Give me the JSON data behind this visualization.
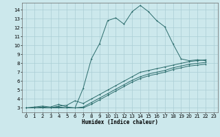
{
  "xlabel": "Humidex (Indice chaleur)",
  "xlim": [
    -0.5,
    23.5
  ],
  "ylim": [
    2.5,
    14.8
  ],
  "xticks": [
    0,
    1,
    2,
    3,
    4,
    5,
    6,
    7,
    8,
    9,
    10,
    11,
    12,
    13,
    14,
    15,
    16,
    17,
    18,
    19,
    20,
    21,
    22,
    23
  ],
  "yticks": [
    3,
    4,
    5,
    6,
    7,
    8,
    9,
    10,
    11,
    12,
    13,
    14
  ],
  "bg_color": "#cce8ec",
  "grid_color": "#aacdd4",
  "line_color": "#2a6b6b",
  "line1_x": [
    0,
    1,
    2,
    3,
    4,
    5,
    6,
    7,
    8,
    9,
    10,
    11,
    12,
    13,
    14,
    15,
    16,
    17,
    18,
    19,
    20,
    21,
    22
  ],
  "line1_y": [
    3.0,
    3.1,
    3.2,
    3.1,
    3.4,
    3.1,
    3.0,
    5.2,
    8.5,
    10.2,
    12.8,
    13.1,
    12.4,
    13.8,
    14.5,
    13.8,
    12.8,
    12.1,
    10.2,
    8.5,
    8.3,
    8.4,
    8.3
  ],
  "line2_x": [
    0,
    1,
    2,
    3,
    4,
    5,
    6,
    7,
    8,
    9,
    10,
    11,
    12,
    13,
    14,
    15,
    16,
    17,
    18,
    19,
    20,
    21,
    22
  ],
  "line2_y": [
    3.0,
    3.0,
    3.1,
    3.0,
    3.2,
    3.3,
    3.8,
    3.5,
    4.0,
    4.5,
    5.0,
    5.5,
    6.0,
    6.5,
    7.0,
    7.2,
    7.4,
    7.6,
    7.8,
    8.0,
    8.2,
    8.3,
    8.4
  ],
  "line3_x": [
    0,
    1,
    2,
    3,
    4,
    5,
    6,
    7,
    8,
    9,
    10,
    11,
    12,
    13,
    14,
    15,
    16,
    17,
    18,
    19,
    20,
    21,
    22
  ],
  "line3_y": [
    3.0,
    3.0,
    3.0,
    3.0,
    3.1,
    3.0,
    3.0,
    3.1,
    3.6,
    4.1,
    4.6,
    5.1,
    5.6,
    6.1,
    6.5,
    6.8,
    7.0,
    7.2,
    7.5,
    7.7,
    7.9,
    8.0,
    8.1
  ],
  "line4_x": [
    0,
    1,
    2,
    3,
    4,
    5,
    6,
    7,
    8,
    9,
    10,
    11,
    12,
    13,
    14,
    15,
    16,
    17,
    18,
    19,
    20,
    21,
    22
  ],
  "line4_y": [
    3.0,
    3.0,
    3.0,
    3.0,
    3.0,
    3.0,
    3.0,
    3.0,
    3.4,
    3.9,
    4.4,
    4.9,
    5.4,
    5.9,
    6.3,
    6.6,
    6.8,
    7.0,
    7.3,
    7.5,
    7.7,
    7.8,
    7.9
  ]
}
